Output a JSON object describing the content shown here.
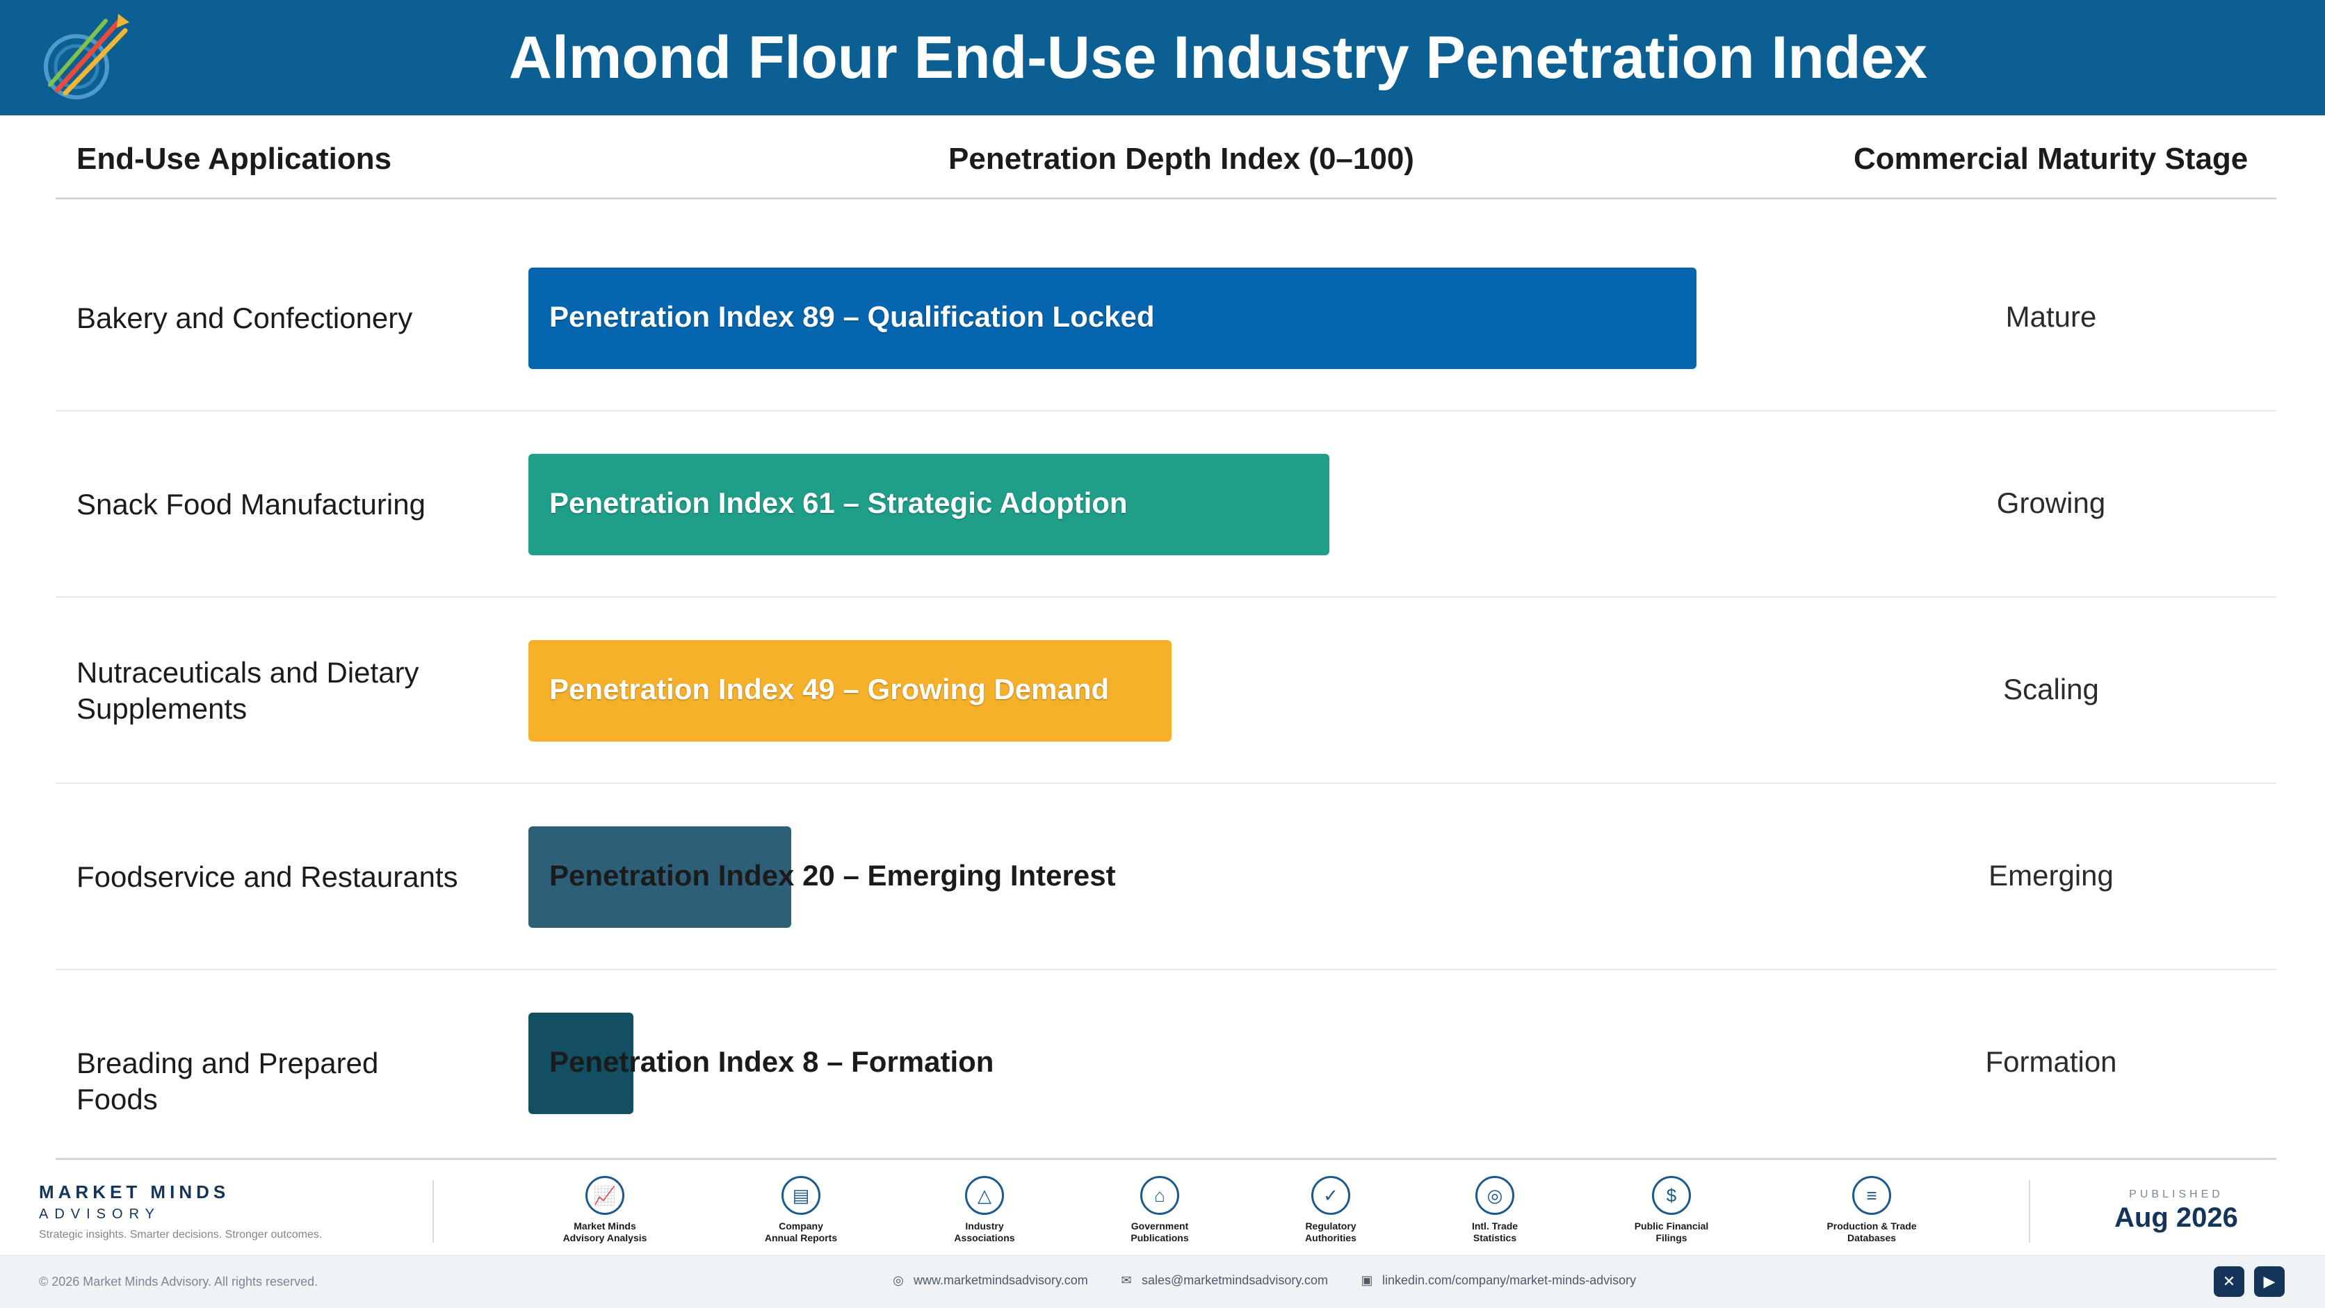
{
  "header": {
    "title": "Almond Flour End-Use Industry Penetration Index"
  },
  "columns": {
    "applications": "End-Use Applications",
    "index": "Penetration Depth Index (0–100)",
    "stage": "Commercial Maturity Stage"
  },
  "chart_data": {
    "type": "bar",
    "orientation": "horizontal",
    "xlim": [
      0,
      100
    ],
    "categories": [
      "Bakery and Confectionery",
      "Snack Food Manufacturing",
      "Nutraceuticals and Dietary Supplements",
      "Foodservice and Restaurants",
      "Breading and Prepared Foods"
    ],
    "values": [
      89,
      61,
      49,
      20,
      8
    ],
    "bar_labels": [
      "Penetration Index 89 – Qualification Locked",
      "Penetration Index 61 – Strategic Adoption",
      "Penetration Index 49 – Growing Demand",
      "Penetration Index 20 – Emerging Interest",
      "Penetration Index 8 – Formation"
    ],
    "stages": [
      "Mature",
      "Growing",
      "Scaling",
      "Emerging",
      "Formation"
    ],
    "colors": [
      "#0565ae",
      "#1f9e8a",
      "#f6b02a",
      "#2e5f78",
      "#124f63"
    ]
  },
  "footer": {
    "brand_name": "MARKET MINDS",
    "brand_sub": "ADVISORY",
    "tagline": "Strategic insights. Smarter decisions. Stronger outcomes.",
    "sources": [
      {
        "icon": "chart-line-icon",
        "glyph": "📈",
        "line1": "Market Minds",
        "line2": "Advisory Analysis"
      },
      {
        "icon": "document-icon",
        "glyph": "▤",
        "line1": "Company",
        "line2": "Annual Reports"
      },
      {
        "icon": "network-icon",
        "glyph": "△",
        "line1": "Industry",
        "line2": "Associations"
      },
      {
        "icon": "government-building-icon",
        "glyph": "⌂",
        "line1": "Government",
        "line2": "Publications"
      },
      {
        "icon": "shield-check-icon",
        "glyph": "✓",
        "line1": "Regulatory",
        "line2": "Authorities"
      },
      {
        "icon": "globe-icon",
        "glyph": "◎",
        "line1": "Intl. Trade",
        "line2": "Statistics"
      },
      {
        "icon": "coin-icon",
        "glyph": "$",
        "line1": "Public Financial",
        "line2": "Filings"
      },
      {
        "icon": "database-icon",
        "glyph": "≡",
        "line1": "Production & Trade",
        "line2": "Databases"
      }
    ],
    "published_label": "PUBLISHED",
    "published_date": "Aug 2026",
    "copyright": "© 2026 Market Minds Advisory. All rights reserved.",
    "website": "www.marketmindsadvisory.com",
    "email": "sales@marketmindsadvisory.com",
    "linkedin": "linkedin.com/company/market-minds-advisory"
  }
}
